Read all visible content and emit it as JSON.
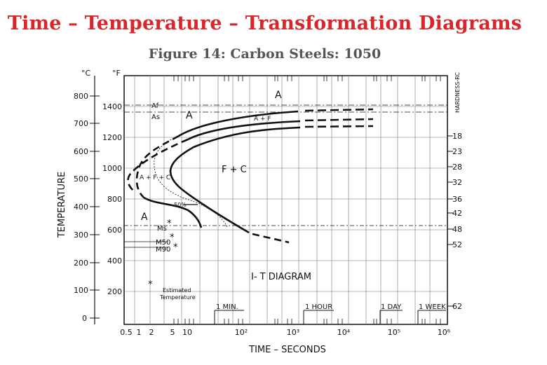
{
  "title": "Time – Temperature – Transformation Diagrams",
  "subtitle": "Figure 14: Carbon Steels: 1050",
  "axes": {
    "celsius_unit": "°C",
    "fahrenheit_unit": "°F",
    "y_label": "TEMPERATURE",
    "x_label": "TIME – SECONDS",
    "hardness_label": "HARDNESS-RC",
    "celsius_ticks": [
      "800",
      "700",
      "600",
      "500",
      "400",
      "300",
      "200",
      "100",
      "0"
    ],
    "fahrenheit_ticks": [
      "1400",
      "1200",
      "1000",
      "800",
      "600",
      "400",
      "200"
    ],
    "time_ticks": [
      "0.5",
      "1",
      "2",
      "5",
      "10",
      "10²",
      "10³",
      "10⁴",
      "10⁵",
      "10⁶"
    ],
    "hardness_ticks": [
      "18",
      "23",
      "28",
      "32",
      "36",
      "42",
      "48",
      "52",
      "62"
    ],
    "time_markers": [
      "1 MIN.",
      "1 HOUR",
      "1 DAY",
      "1 WEEK"
    ]
  },
  "labels": {
    "a_top": "A",
    "a_mid": "A",
    "a_low": "A",
    "af": "Af",
    "as": "As",
    "a_plus_f": "A + F",
    "f_plus_c": "F + C",
    "a_f_c": "A + F + C",
    "fifty_percent": "50%",
    "ms": "Ms",
    "m50": "M50",
    "m90": "M90",
    "diagram_name": "I- T  DIAGRAM",
    "legend_star": "*",
    "legend_text_1": "Estimated",
    "legend_text_2": "Temperature"
  }
}
